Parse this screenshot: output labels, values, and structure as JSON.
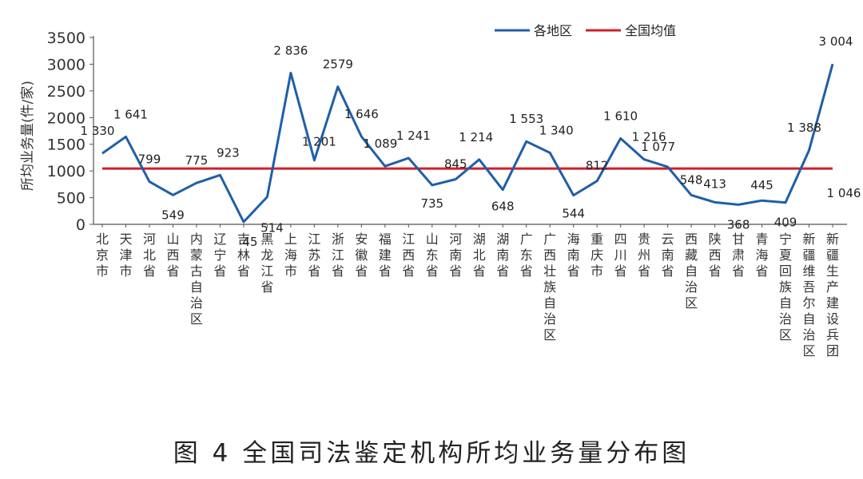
{
  "chart_data": {
    "type": "line",
    "title": "",
    "ylabel": "所均业务量(件/家)",
    "xlabel": "",
    "ylim": [
      0,
      3500
    ],
    "yticks": [
      0,
      500,
      1000,
      1500,
      2000,
      2500,
      3000,
      3500
    ],
    "ytick_labels": [
      "0",
      "500",
      "1000",
      "1500",
      "2000",
      "2500",
      "3000",
      "3500"
    ],
    "grid": false,
    "legend_position": "top-right",
    "categories": [
      "北京市",
      "天津市",
      "河北省",
      "山西省",
      "内蒙古自治区",
      "辽宁省",
      "吉林省",
      "黑龙江省",
      "上海市",
      "江苏省",
      "浙江省",
      "安徽省",
      "福建省",
      "江西省",
      "山东省",
      "河南省",
      "湖北省",
      "湖南省",
      "广东省",
      "广西壮族自治区",
      "海南省",
      "重庆市",
      "四川省",
      "贵州省",
      "云南省",
      "西藏自治区",
      "陕西省",
      "甘肃省",
      "青海省",
      "宁夏回族自治区",
      "新疆维吾尔自治区",
      "新疆生产建设兵团"
    ],
    "series": [
      {
        "name": "各地区",
        "color": "#1f5fa8",
        "values": [
          1330,
          1641,
          799,
          549,
          775,
          923,
          45,
          514,
          2836,
          1201,
          2579,
          1646,
          1089,
          1241,
          735,
          845,
          1214,
          648,
          1553,
          1340,
          544,
          812,
          1610,
          1216,
          1077,
          548,
          413,
          368,
          445,
          409,
          1388,
          3004
        ],
        "label_texts": [
          "1 330",
          "1 641",
          "799",
          "549",
          "775",
          "923",
          "45",
          "514",
          "2 836",
          "1 201",
          "2579",
          "1 646",
          "1 089",
          "1 241",
          "735",
          "845",
          "1 214",
          "648",
          "1 553",
          "1 340",
          "544",
          "812",
          "1 610",
          "1 216",
          "1 077",
          "548",
          "413",
          "368",
          "445",
          "409",
          "1 388",
          "3 004"
        ]
      },
      {
        "name": "全国均值",
        "color": "#d0202a",
        "value": 1046,
        "label_text": "1 046"
      }
    ]
  },
  "caption": "图 4   全国司法鉴定机构所均业务量分布图"
}
